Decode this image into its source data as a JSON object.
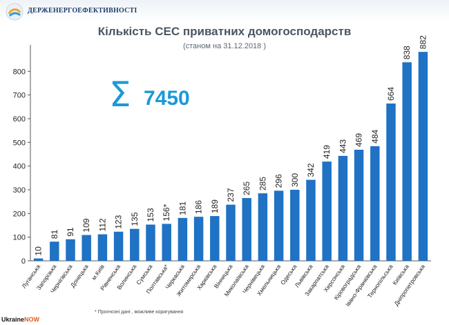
{
  "header": {
    "org_name": "ДЕРЖЕНЕРГОЕФЕКТИВНОСТІ",
    "logo_icon": "globe-logo-icon"
  },
  "chart_data": {
    "type": "bar",
    "title": "Кількість СЕС приватних домогосподарств",
    "subtitle": "(станом на 31.12.2018 )",
    "categories": [
      "Луганська",
      "Запорізька",
      "Чернігівська",
      "Донецька",
      "м.Київ",
      "Рівненська",
      "Волинська",
      "Сумська",
      "Полтавська*",
      "Черкаська",
      "Житомирська",
      "Харківська",
      "Вінницька",
      "Миколаївська",
      "Чернівецька",
      "Хмельницька",
      "Одеська",
      "Львівська",
      "Закарпатська",
      "Херсонська",
      "Кіровоградська",
      "Івано-Франківська",
      "Тернопільська",
      "Київська",
      "Дніпропетровська"
    ],
    "values": [
      10,
      81,
      91,
      109,
      112,
      123,
      135,
      153,
      156,
      181,
      186,
      189,
      237,
      265,
      285,
      296,
      300,
      342,
      419,
      443,
      469,
      484,
      664,
      838,
      882
    ],
    "value_labels": [
      "10",
      "81",
      "91",
      "109",
      "112",
      "123",
      "135",
      "153",
      "156*",
      "181",
      "186",
      "189",
      "237",
      "265",
      "285",
      "296",
      "300",
      "342",
      "419",
      "443",
      "469",
      "484",
      "664",
      "838",
      "882"
    ],
    "ylim": [
      0,
      900
    ],
    "yticks": [
      0,
      100,
      200,
      300,
      400,
      500,
      600,
      700,
      800
    ],
    "grid": false,
    "bar_color": "#1f72c4",
    "total_icon": "sigma-icon",
    "total_value": "7450",
    "total_color": "#1a9ad6"
  },
  "footnote": "* Прогнозні дані , можливе коригування",
  "watermark": {
    "part1": "Ukraine",
    "part2": "NOW"
  }
}
